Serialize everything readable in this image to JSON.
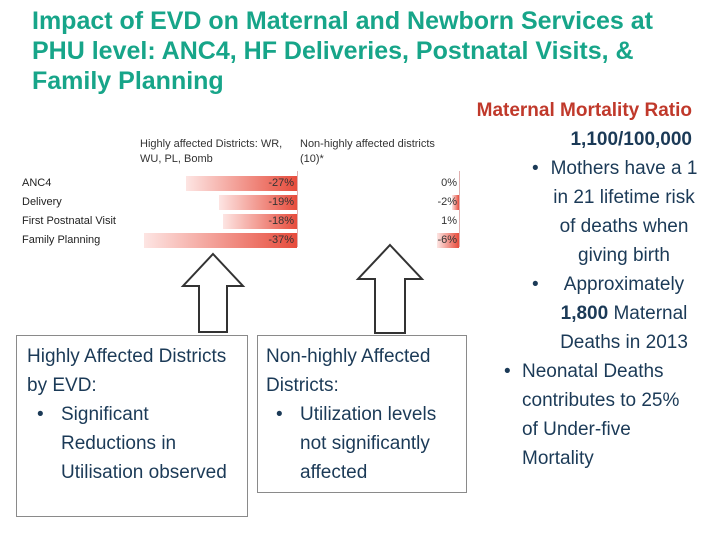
{
  "title": "Impact of EVD on Maternal and Newborn Services at PHU level: ANC4, HF Deliveries, Postnatal Visits, & Family Planning",
  "right_panel": {
    "heading_red": "Maternal Mortality Ratio",
    "heading_value": "1,100/100,000",
    "bullet1": "Mothers have a 1 in 21 lifetime risk of deaths when giving birth",
    "bullet2_pre": "Approximately",
    "bullet2_bold": "1,800",
    "bullet2_post": "Maternal Deaths in 2013",
    "bullet3": "Neonatal Deaths contributes to 25% of Under-five Mortality"
  },
  "table": {
    "col1_header": "Highly  affected Districts: WR, WU, PL, Bomb",
    "col2_header": "Non-highly affected districts (10)*",
    "rows": [
      {
        "label": "ANC4",
        "high": "-27%",
        "nonhigh": "0%",
        "high_value": -27,
        "nonhigh_value": 0
      },
      {
        "label": "Delivery",
        "high": "-19%",
        "nonhigh": "-2%",
        "high_value": -19,
        "nonhigh_value": -2
      },
      {
        "label": "First Postnatal Visit",
        "high": "-18%",
        "nonhigh": "1%",
        "high_value": -18,
        "nonhigh_value": 1
      },
      {
        "label": "Family Planning",
        "high": "-37%",
        "nonhigh": "-6%",
        "high_value": -37,
        "nonhigh_value": -6
      }
    ]
  },
  "box_left": {
    "text": "Highly Affected Districts by EVD:",
    "bullet": "Significant Reductions in Utilisation observed"
  },
  "box_middle": {
    "text": "Non-highly Affected Districts:",
    "bullet": "Utilization levels not significantly affected"
  },
  "colors": {
    "title": "#17a589",
    "body_text": "#1b3a57",
    "highlight": "#c0392b",
    "bar_red": "#e74c3c"
  }
}
